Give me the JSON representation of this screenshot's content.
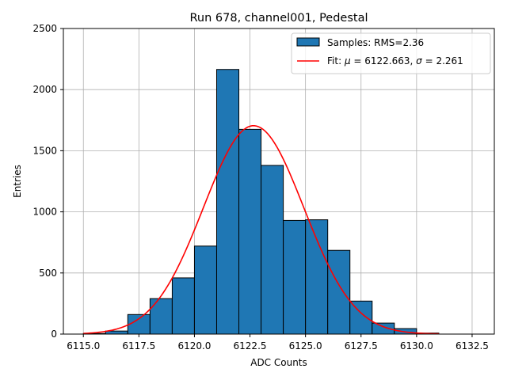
{
  "chart_data": {
    "type": "bar",
    "title": "Run 678, channel001, Pedestal",
    "xlabel": "ADC Counts",
    "ylabel": "Entries",
    "xlim": [
      6114.1,
      6133.5
    ],
    "ylim": [
      0,
      2500
    ],
    "xticks": [
      6115.0,
      6117.5,
      6120.0,
      6122.5,
      6125.0,
      6127.5,
      6130.0,
      6132.5
    ],
    "xtick_labels": [
      "6115.0",
      "6117.5",
      "6120.0",
      "6122.5",
      "6125.0",
      "6127.5",
      "6130.0",
      "6132.5"
    ],
    "yticks": [
      0,
      500,
      1000,
      1500,
      2000,
      2500
    ],
    "ytick_labels": [
      "0",
      "500",
      "1000",
      "1500",
      "2000",
      "2500"
    ],
    "grid": true,
    "legend_position": "top-right",
    "histogram": {
      "name": "Samples: RMS=2.36",
      "color": "#1f77b4",
      "edge_color": "#000000",
      "bins": [
        {
          "x0": 6115,
          "x1": 6116,
          "count": 5
        },
        {
          "x0": 6116,
          "x1": 6117,
          "count": 25
        },
        {
          "x0": 6117,
          "x1": 6118,
          "count": 160
        },
        {
          "x0": 6118,
          "x1": 6119,
          "count": 290
        },
        {
          "x0": 6119,
          "x1": 6120,
          "count": 460
        },
        {
          "x0": 6120,
          "x1": 6121,
          "count": 720
        },
        {
          "x0": 6121,
          "x1": 6122,
          "count": 2165
        },
        {
          "x0": 6122,
          "x1": 6123,
          "count": 1675
        },
        {
          "x0": 6123,
          "x1": 6124,
          "count": 1380
        },
        {
          "x0": 6124,
          "x1": 6125,
          "count": 930
        },
        {
          "x0": 6125,
          "x1": 6126,
          "count": 935
        },
        {
          "x0": 6126,
          "x1": 6127,
          "count": 685
        },
        {
          "x0": 6127,
          "x1": 6128,
          "count": 270
        },
        {
          "x0": 6128,
          "x1": 6129,
          "count": 90
        },
        {
          "x0": 6129,
          "x1": 6130,
          "count": 45
        },
        {
          "x0": 6130,
          "x1": 6131,
          "count": 8
        }
      ]
    },
    "fit": {
      "name_prefix": "Fit: ",
      "mu_symbol": "μ",
      "mu_text": " = 6122.663, ",
      "sigma_symbol": "σ",
      "sigma_text": " = 2.261",
      "color": "#ff0000",
      "mu": 6122.663,
      "sigma": 2.261,
      "amplitude": 1705,
      "x_range": [
        6115,
        6131
      ]
    }
  }
}
